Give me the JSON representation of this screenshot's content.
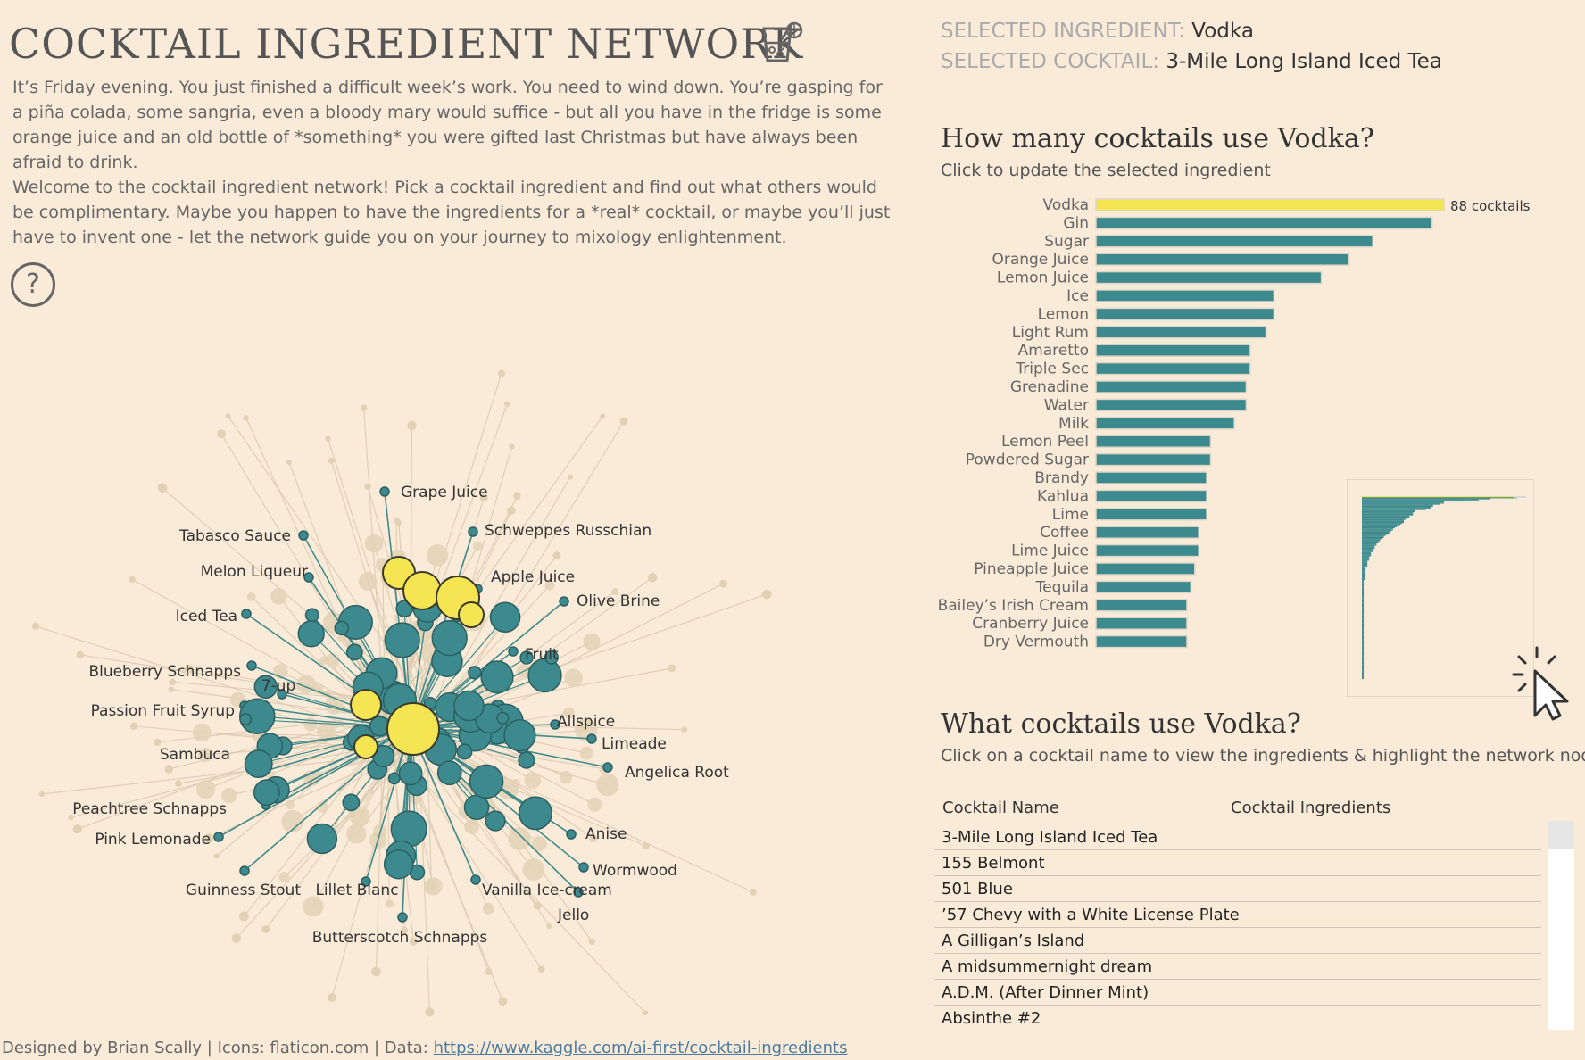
{
  "header": {
    "title": "COCKTAIL INGREDIENT NETWORK",
    "title_icon": "cocktail-glass-icon",
    "intro_1": "It’s Friday evening. You just finished a difficult week’s work. You need to wind down. You’re gasping for a piña colada, some sangria, even a bloody mary would suffice - but all you have in the fridge is some orange juice and an old bottle of *something* you were gifted last Christmas but have always been afraid to drink.",
    "intro_2": "Welcome to the cocktail ingredient network! Pick a cocktail ingredient and find out what others would be complimentary. Maybe you happen to have the ingredients for a *real* cocktail, or maybe you’ll just have to invent one - let the network guide you on your journey to mixology enlightenment.",
    "help_symbol": "?",
    "help_icon": "question-circle-icon"
  },
  "selection": {
    "ingredient_label": "SELECTED INGREDIENT:",
    "ingredient_value": "Vodka",
    "cocktail_label": "SELECTED COCKTAIL:",
    "cocktail_value": "3-Mile Long Island Iced Tea"
  },
  "colors": {
    "background": "#faebd9",
    "teal": "#3d8a8e",
    "yellow": "#f5e553",
    "beige_node": "#e2d2b5",
    "edge": "#d9c8ad",
    "teal_edge": "#3f8a8a"
  },
  "network": {
    "labels": [
      "Grape Juice",
      "Schweppes Russchian",
      "Tabasco Sauce",
      "Melon Liqueur",
      "Apple Juice",
      "Olive Brine",
      "Iced Tea",
      "Fruit",
      "Blueberry Schnapps",
      "7-up",
      "Passion Fruit Syrup",
      "Allspice",
      "Limeade",
      "Sambuca",
      "Angelica Root",
      "Peachtree Schnapps",
      "Anise",
      "Pink Lemonade",
      "Wormwood",
      "Guinness Stout",
      "Lillet Blanc",
      "Vanilla Ice-cream",
      "Jello",
      "Butterscotch Schnapps"
    ]
  },
  "bar_section": {
    "title": "How many cocktails use Vodka?",
    "subtitle": "Click to update the selected ingredient"
  },
  "chart_data": [
    {
      "type": "bar",
      "orientation": "horizontal",
      "categories": [
        "Vodka",
        "Gin",
        "Sugar",
        "Orange Juice",
        "Lemon Juice",
        "Ice",
        "Lemon",
        "Light Rum",
        "Amaretto",
        "Triple Sec",
        "Grenadine",
        "Water",
        "Milk",
        "Lemon Peel",
        "Powdered Sugar",
        "Brandy",
        "Kahlua",
        "Lime",
        "Coffee",
        "Lime Juice",
        "Pineapple Juice",
        "Tequila",
        "Bailey’s Irish Cream",
        "Cranberry Juice",
        "Dry Vermouth"
      ],
      "values": [
        88,
        85,
        70,
        64,
        57,
        45,
        45,
        43,
        39,
        39,
        38,
        38,
        35,
        29,
        29,
        28,
        28,
        28,
        26,
        26,
        25,
        24,
        23,
        23,
        23
      ],
      "highlight": "Vodka",
      "data_label": "88 cocktails",
      "xlim": [
        0,
        88
      ]
    },
    {
      "type": "bar",
      "orientation": "horizontal",
      "description": "overview of all ingredients",
      "highlight_value": 88,
      "values": [
        88,
        85,
        70,
        64,
        57,
        45,
        45,
        43,
        39,
        39,
        38,
        38,
        35,
        29,
        29,
        28,
        28,
        28,
        26,
        26,
        25,
        24,
        23,
        23,
        23,
        22,
        21,
        20,
        19,
        18,
        17,
        17,
        16,
        15,
        15,
        14,
        13,
        12,
        12,
        11,
        10,
        10,
        9,
        9,
        8,
        8,
        7,
        7,
        7,
        6,
        6,
        6,
        5,
        5,
        5,
        5,
        4,
        4,
        4,
        4,
        3,
        3,
        3,
        3,
        3,
        3,
        2,
        2,
        2,
        2,
        2,
        2,
        2,
        2,
        2,
        2,
        2,
        2,
        1,
        1,
        1,
        1,
        1,
        1,
        1,
        1,
        1,
        1,
        1,
        1,
        1,
        1,
        1,
        1,
        1,
        1,
        1,
        1,
        1,
        1,
        1,
        1,
        1,
        1,
        1,
        1,
        1,
        1,
        1,
        1,
        1,
        1,
        1,
        1,
        1,
        1,
        1,
        1,
        1,
        1,
        1,
        1,
        1,
        1,
        1,
        1,
        1,
        1,
        1,
        1,
        1,
        1,
        1,
        1,
        1,
        1,
        1,
        1,
        1,
        1,
        1,
        1,
        1,
        1,
        1,
        1,
        1,
        1,
        1,
        1,
        1,
        1,
        1,
        1,
        1,
        1,
        1,
        1,
        1,
        1,
        1,
        1,
        1,
        1,
        1,
        1,
        1,
        1,
        1,
        1
      ]
    }
  ],
  "list_section": {
    "title": "What cocktails use Vodka?",
    "subtitle": "Click on a cocktail name to view the ingredients & highlight the network nodes",
    "columns": [
      "Cocktail Name",
      "Cocktail Ingredients"
    ],
    "rows": [
      "3-Mile Long Island Iced Tea",
      "155 Belmont",
      "501 Blue",
      "’57 Chevy with a White License Plate",
      "A Gilligan’s Island",
      "A midsummernight dream",
      "A.D.M. (After Dinner Mint)",
      "Absinthe #2"
    ]
  },
  "footer": {
    "credits": "Designed by Brian Scally | Icons: flaticon.com | Data: ",
    "link": "https://www.kaggle.com/ai-first/cocktail-ingredients"
  },
  "cursor_icon": "click-cursor-icon"
}
